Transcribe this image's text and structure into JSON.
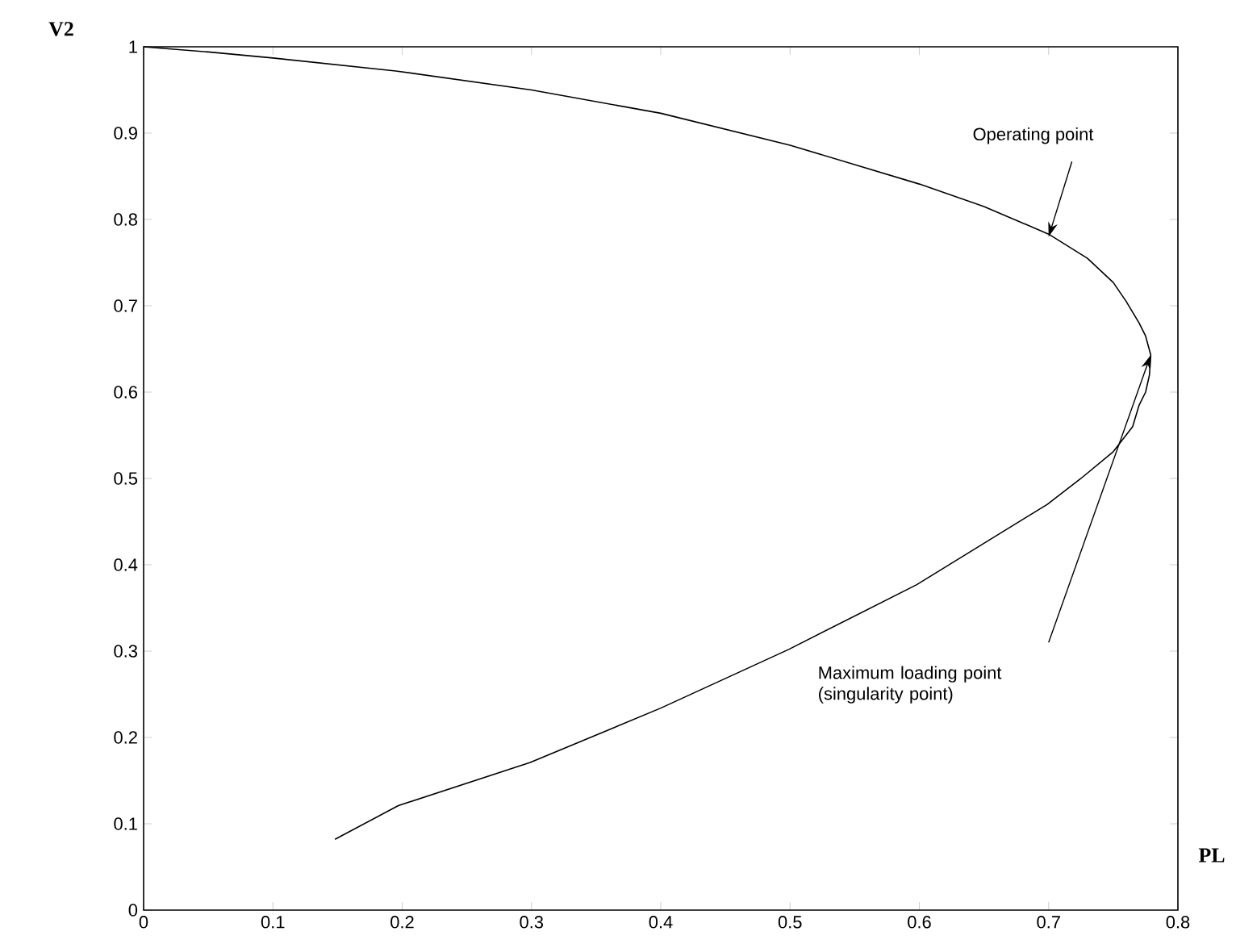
{
  "chart_data": {
    "type": "line",
    "xlabel": "PL",
    "ylabel": "V2",
    "xlim": [
      0,
      0.8
    ],
    "xticks": [
      0,
      0.1,
      0.2,
      0.3,
      0.4,
      0.5,
      0.6,
      0.7,
      0.8
    ],
    "ylim": [
      0,
      1
    ],
    "yticks": [
      0,
      0.1,
      0.2,
      0.3,
      0.4,
      0.5,
      0.6,
      0.7,
      0.8,
      0.9,
      1
    ],
    "grid": false,
    "marker": "none",
    "line_style": "solid",
    "series": [
      {
        "color": "#000000",
        "x": [
          0,
          0.05,
          0.1,
          0.195,
          0.3,
          0.4,
          0.5,
          0.6,
          0.65,
          0.7,
          0.73,
          0.75,
          0.76,
          0.77,
          0.775,
          0.779,
          0.778,
          0.775,
          0.77,
          0.765,
          0.75,
          0.725,
          0.699,
          0.598,
          0.499,
          0.4,
          0.299,
          0.197,
          0.148
        ],
        "values": [
          1,
          0.994,
          0.987,
          0.972,
          0.95,
          0.923,
          0.886,
          0.841,
          0.815,
          0.783,
          0.755,
          0.727,
          0.705,
          0.68,
          0.665,
          0.643,
          0.62,
          0.6,
          0.585,
          0.56,
          0.531,
          0.5,
          0.47,
          0.377,
          0.302,
          0.234,
          0.171,
          0.121,
          0.082
        ]
      }
    ],
    "annotations": [
      {
        "text": "Operating point",
        "x": 0.7,
        "y": 0.78
      },
      "Maximum loading point (singularity point)"
    ]
  }
}
